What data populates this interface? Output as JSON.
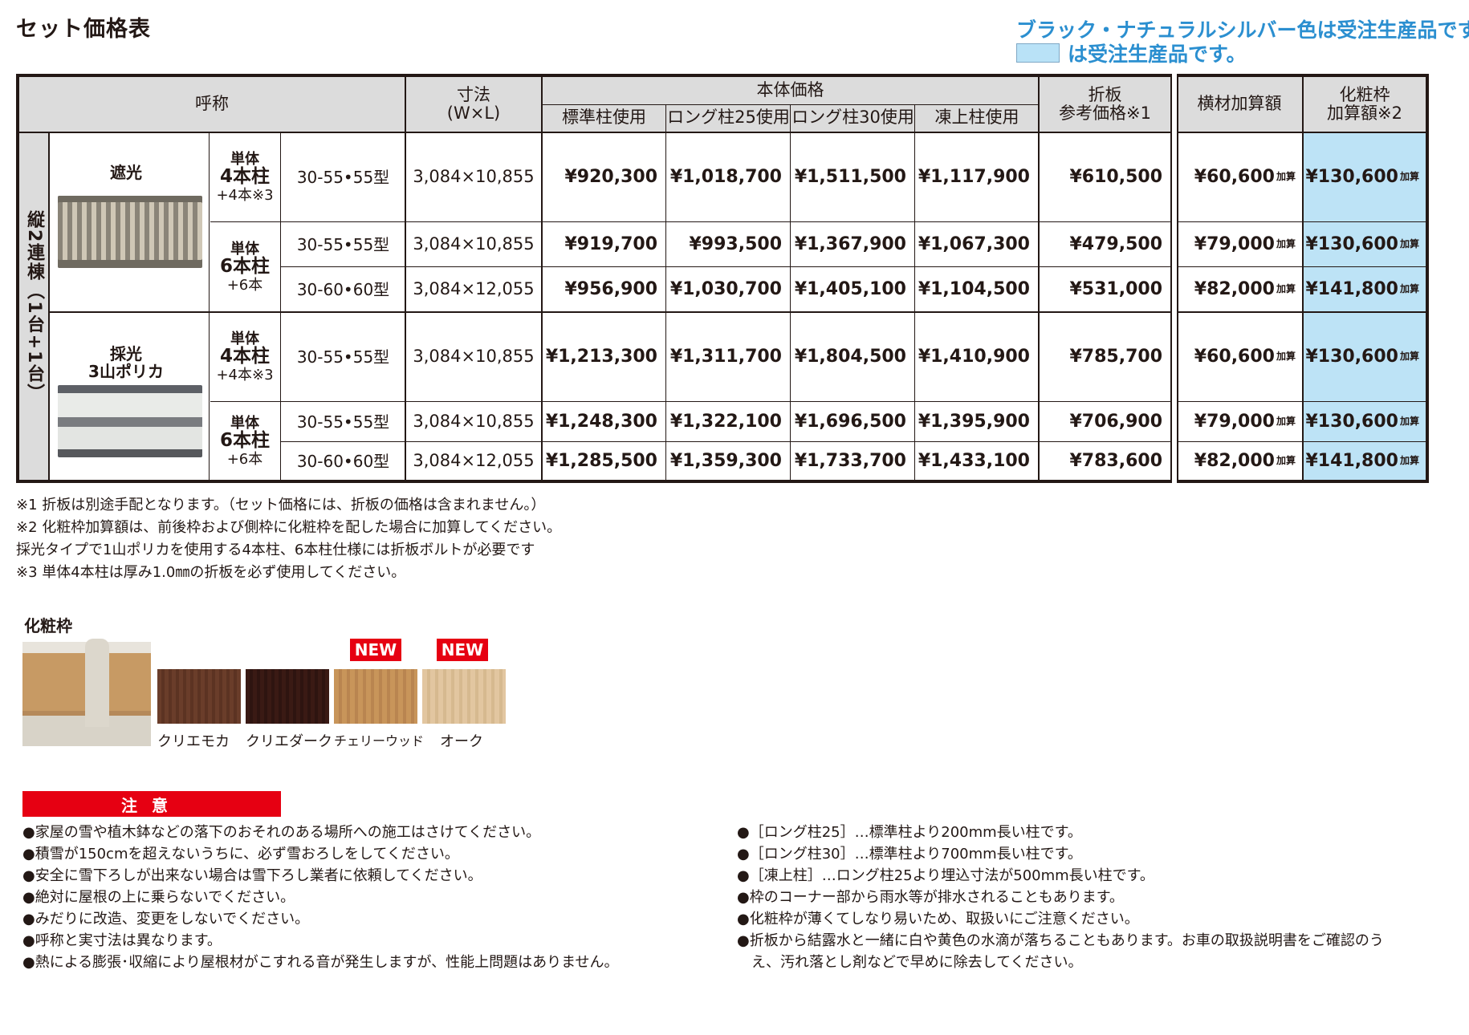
{
  "title": "セット価格表",
  "notice": {
    "line1": "ブラック・ナチュラルシルバー色は受注生産品です。",
    "line2": "は受注生産品です。",
    "highlight_color": "#bde3f6"
  },
  "table": {
    "headers": {
      "name": "呼称",
      "dimension": "寸法",
      "dimension_unit": "(W×L)",
      "body_price": "本体価格",
      "standard": "標準柱使用",
      "long25": "ロング柱25使用",
      "long30": "ロング柱30使用",
      "frost": "凍上柱使用",
      "panel_line1": "折板",
      "panel_line2": "参考価格※1",
      "crossbar": "横材加算額",
      "finish_line1": "化粧枠",
      "finish_line2": "加算額※2"
    },
    "side_label": "縦2連棟（1台+1台）",
    "add_suffix": "加算",
    "groups": [
      {
        "type": "遮光",
        "units": [
          {
            "label_line1": "単体",
            "label_line2": "4本柱",
            "label_line3": "+4本※3",
            "rows": [
              {
                "model": "30-55•55型",
                "dim": "3,084×10,855",
                "std": "¥920,300",
                "l25": "¥1,018,700",
                "l30": "¥1,511,500",
                "frost": "¥1,117,900",
                "panel": "¥610,500",
                "cross": "¥60,600",
                "finish": "¥130,600"
              }
            ]
          },
          {
            "label_line1": "単体",
            "label_line2": "6本柱",
            "label_line3": "+6本",
            "rows": [
              {
                "model": "30-55•55型",
                "dim": "3,084×10,855",
                "std": "¥919,700",
                "l25": "¥993,500",
                "l30": "¥1,367,900",
                "frost": "¥1,067,300",
                "panel": "¥479,500",
                "cross": "¥79,000",
                "finish": "¥130,600"
              },
              {
                "model": "30-60•60型",
                "dim": "3,084×12,055",
                "std": "¥956,900",
                "l25": "¥1,030,700",
                "l30": "¥1,405,100",
                "frost": "¥1,104,500",
                "panel": "¥531,000",
                "cross": "¥82,000",
                "finish": "¥141,800"
              }
            ]
          }
        ]
      },
      {
        "type_line1": "採光",
        "type_line2": "3山ポリカ",
        "units": [
          {
            "label_line1": "単体",
            "label_line2": "4本柱",
            "label_line3": "+4本※3",
            "rows": [
              {
                "model": "30-55•55型",
                "dim": "3,084×10,855",
                "std": "¥1,213,300",
                "l25": "¥1,311,700",
                "l30": "¥1,804,500",
                "frost": "¥1,410,900",
                "panel": "¥785,700",
                "cross": "¥60,600",
                "finish": "¥130,600"
              }
            ]
          },
          {
            "label_line1": "単体",
            "label_line2": "6本柱",
            "label_line3": "+6本",
            "rows": [
              {
                "model": "30-55•55型",
                "dim": "3,084×10,855",
                "std": "¥1,248,300",
                "l25": "¥1,322,100",
                "l30": "¥1,696,500",
                "frost": "¥1,395,900",
                "panel": "¥706,900",
                "cross": "¥79,000",
                "finish": "¥130,600"
              },
              {
                "model": "30-60•60型",
                "dim": "3,084×12,055",
                "std": "¥1,285,500",
                "l25": "¥1,359,300",
                "l30": "¥1,733,700",
                "frost": "¥1,433,100",
                "panel": "¥783,600",
                "cross": "¥82,000",
                "finish": "¥141,800"
              }
            ]
          }
        ]
      }
    ]
  },
  "notes": [
    "※1 折板は別途手配となります。（セット価格には、折板の価格は含まれません。）",
    "※2 化粧枠加算額は、前後枠および側枠に化粧枠を配した場合に加算してください。",
    "採光タイプで1山ポリカを使用する4本柱、6本柱仕様には折板ボルトが必要です",
    "※3 単体4本柱は厚み1.0㎜の折板を必ず使用してください。"
  ],
  "finish_frame": {
    "title": "化粧枠",
    "new_label": "NEW",
    "swatches": [
      {
        "name": "クリエモカ",
        "color": "#6a3d2a"
      },
      {
        "name": "クリエダーク",
        "color": "#3a1a14"
      },
      {
        "name": "チェリーウッド",
        "color": "#c8955a"
      },
      {
        "name": "オーク",
        "color": "#e2c6a0"
      }
    ]
  },
  "caution": {
    "title": "注意",
    "left": [
      "●家屋の雪や植木鉢などの落下のおそれのある場所への施工はさけてください。",
      "●積雪が150cmを超えないうちに、必ず雪おろしをしてください。",
      "●安全に雪下ろしが出来ない場合は雪下ろし業者に依頼してください。",
      "●絶対に屋根の上に乗らないでください。",
      "●みだりに改造、変更をしないでください。",
      "●呼称と実寸法は異なります。",
      "●熱による膨張･収縮により屋根材がこすれる音が発生しますが、性能上問題はありません。"
    ],
    "right": [
      "●［ロング柱25］…標準柱より200mm長い柱です。",
      "●［ロング柱30］…標準柱より700mm長い柱です。",
      "●［凍上柱］…ロング柱25より埋込寸法が500mm長い柱です。",
      "●枠のコーナー部から雨水等が排水されることもあります。",
      "●化粧枠が薄くてしなり易いため、取扱いにご注意ください。",
      "●折板から結露水と一緒に白や黄色の水滴が落ちることもあります。お車の取扱説明書をご確認のう",
      "　え、汚れ落とし剤などで早めに除去してください。"
    ]
  }
}
